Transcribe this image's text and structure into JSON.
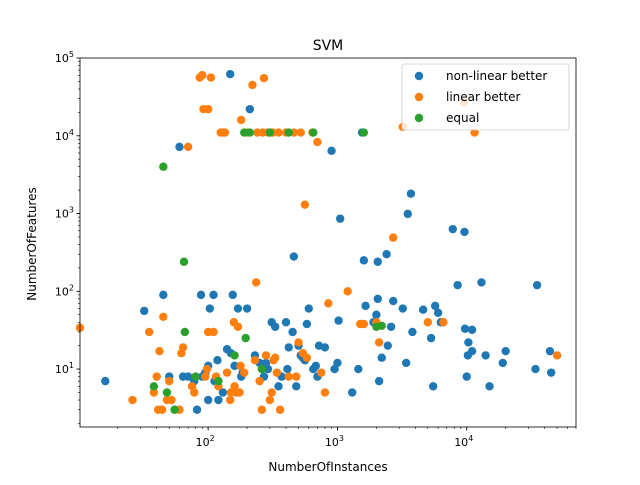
{
  "chart_data": {
    "type": "scatter",
    "title": "SVM",
    "xlabel": "NumberOfInstances",
    "ylabel": "NumberOfFeatures",
    "xscale": "log",
    "yscale": "log",
    "xlim": [
      10.2,
      70000
    ],
    "ylim": [
      1.8,
      100000
    ],
    "xticks": [
      {
        "value": 100,
        "label": "10²",
        "base": "10",
        "exp": "2"
      },
      {
        "value": 1000,
        "label": "10³",
        "base": "10",
        "exp": "3"
      },
      {
        "value": 10000,
        "label": "10⁴",
        "base": "10",
        "exp": "4"
      }
    ],
    "yticks": [
      {
        "value": 10,
        "label": "10¹",
        "base": "10",
        "exp": "1"
      },
      {
        "value": 100,
        "label": "10²",
        "base": "10",
        "exp": "2"
      },
      {
        "value": 1000,
        "label": "10³",
        "base": "10",
        "exp": "3"
      },
      {
        "value": 10000,
        "label": "10⁴",
        "base": "10",
        "exp": "4"
      },
      {
        "value": 100000,
        "label": "10⁵",
        "base": "10",
        "exp": "5"
      }
    ],
    "grid": false,
    "legend_position": "top-right",
    "series": [
      {
        "name": "non-linear better",
        "color": "#1f77b4",
        "points": [
          [
            16,
            7
          ],
          [
            32,
            56
          ],
          [
            45,
            90
          ],
          [
            50,
            8
          ],
          [
            60,
            7200
          ],
          [
            64,
            8
          ],
          [
            70,
            8
          ],
          [
            78,
            7
          ],
          [
            82,
            3
          ],
          [
            88,
            90
          ],
          [
            90,
            8
          ],
          [
            95,
            9
          ],
          [
            100,
            11
          ],
          [
            100,
            4
          ],
          [
            103,
            60
          ],
          [
            110,
            90
          ],
          [
            112,
            7
          ],
          [
            118,
            13
          ],
          [
            120,
            4
          ],
          [
            130,
            5
          ],
          [
            140,
            18
          ],
          [
            148,
            62000
          ],
          [
            150,
            16
          ],
          [
            155,
            90
          ],
          [
            160,
            11
          ],
          [
            170,
            60
          ],
          [
            180,
            8
          ],
          [
            185,
            9
          ],
          [
            200,
            60
          ],
          [
            210,
            22000
          ],
          [
            230,
            15
          ],
          [
            250,
            12
          ],
          [
            270,
            8
          ],
          [
            280,
            12
          ],
          [
            290,
            10
          ],
          [
            310,
            40
          ],
          [
            330,
            35
          ],
          [
            350,
            6
          ],
          [
            370,
            8
          ],
          [
            400,
            40
          ],
          [
            410,
            10
          ],
          [
            420,
            19
          ],
          [
            450,
            30
          ],
          [
            460,
            280
          ],
          [
            480,
            6
          ],
          [
            500,
            20
          ],
          [
            520,
            15
          ],
          [
            540,
            14
          ],
          [
            560,
            13
          ],
          [
            580,
            38
          ],
          [
            600,
            60
          ],
          [
            650,
            10
          ],
          [
            680,
            11
          ],
          [
            700,
            8
          ],
          [
            720,
            20
          ],
          [
            800,
            19
          ],
          [
            900,
            6400
          ],
          [
            950,
            10
          ],
          [
            1000,
            12
          ],
          [
            1020,
            42
          ],
          [
            1050,
            860
          ],
          [
            1300,
            5
          ],
          [
            1450,
            10
          ],
          [
            1550,
            11000
          ],
          [
            1600,
            250
          ],
          [
            1650,
            65
          ],
          [
            1900,
            40
          ],
          [
            2000,
            50
          ],
          [
            2050,
            240
          ],
          [
            2050,
            80
          ],
          [
            2100,
            7
          ],
          [
            2200,
            14
          ],
          [
            2400,
            300
          ],
          [
            2450,
            20
          ],
          [
            2600,
            35
          ],
          [
            2700,
            75
          ],
          [
            3200,
            60
          ],
          [
            3400,
            12
          ],
          [
            3500,
            990
          ],
          [
            3700,
            1800
          ],
          [
            3800,
            30
          ],
          [
            4600,
            58
          ],
          [
            5300,
            25
          ],
          [
            5500,
            6
          ],
          [
            5700,
            65
          ],
          [
            6000,
            53
          ],
          [
            6300,
            40
          ],
          [
            7800,
            630
          ],
          [
            8500,
            120
          ],
          [
            9600,
            580
          ],
          [
            9700,
            33
          ],
          [
            10000,
            8
          ],
          [
            10200,
            15
          ],
          [
            10300,
            22
          ],
          [
            11000,
            17
          ],
          [
            11000,
            32
          ],
          [
            13000,
            130
          ],
          [
            14000,
            15
          ],
          [
            15000,
            6
          ],
          [
            19000,
            12
          ],
          [
            20000,
            17
          ],
          [
            34000,
            10
          ],
          [
            35000,
            120
          ],
          [
            44000,
            17
          ],
          [
            45000,
            9
          ]
        ]
      },
      {
        "name": "linear better",
        "color": "#ff7f0e",
        "points": [
          [
            10.2,
            34
          ],
          [
            26,
            4
          ],
          [
            35,
            30
          ],
          [
            38,
            5
          ],
          [
            40,
            8
          ],
          [
            41,
            3
          ],
          [
            42,
            17
          ],
          [
            44,
            3
          ],
          [
            45,
            47
          ],
          [
            48,
            4
          ],
          [
            50,
            7
          ],
          [
            52,
            4
          ],
          [
            60,
            3
          ],
          [
            62,
            16
          ],
          [
            64,
            19
          ],
          [
            70,
            7200
          ],
          [
            75,
            6
          ],
          [
            78,
            5
          ],
          [
            86,
            56000
          ],
          [
            90,
            60000
          ],
          [
            92,
            22000
          ],
          [
            95,
            8
          ],
          [
            98,
            10
          ],
          [
            100,
            22000
          ],
          [
            100,
            30
          ],
          [
            105,
            56000
          ],
          [
            110,
            30
          ],
          [
            115,
            8
          ],
          [
            120,
            6
          ],
          [
            125,
            11000
          ],
          [
            130,
            11000
          ],
          [
            135,
            11000
          ],
          [
            140,
            9
          ],
          [
            148,
            4
          ],
          [
            150,
            5
          ],
          [
            158,
            40
          ],
          [
            160,
            6
          ],
          [
            165,
            5
          ],
          [
            170,
            35
          ],
          [
            175,
            5
          ],
          [
            178,
            11
          ],
          [
            180,
            16000
          ],
          [
            190,
            9
          ],
          [
            200,
            11000
          ],
          [
            220,
            45000
          ],
          [
            230,
            13
          ],
          [
            235,
            130
          ],
          [
            240,
            11000
          ],
          [
            250,
            7
          ],
          [
            260,
            3
          ],
          [
            265,
            11000
          ],
          [
            270,
            55000
          ],
          [
            280,
            15
          ],
          [
            290,
            11000
          ],
          [
            300,
            4
          ],
          [
            310,
            5
          ],
          [
            315,
            11000
          ],
          [
            320,
            13
          ],
          [
            330,
            14
          ],
          [
            340,
            9
          ],
          [
            350,
            11000
          ],
          [
            360,
            3
          ],
          [
            400,
            11000
          ],
          [
            420,
            8
          ],
          [
            460,
            11000
          ],
          [
            480,
            8
          ],
          [
            500,
            22
          ],
          [
            520,
            11000
          ],
          [
            540,
            16
          ],
          [
            560,
            1300
          ],
          [
            580,
            14
          ],
          [
            640,
            11000
          ],
          [
            700,
            8300
          ],
          [
            750,
            9
          ],
          [
            800,
            5
          ],
          [
            850,
            70
          ],
          [
            1200,
            100
          ],
          [
            1500,
            38
          ],
          [
            1600,
            38
          ],
          [
            2000,
            40
          ],
          [
            2100,
            22
          ],
          [
            2700,
            490
          ],
          [
            3200,
            13000
          ],
          [
            5000,
            40
          ],
          [
            6600,
            40
          ],
          [
            9500,
            27000
          ],
          [
            11500,
            11000
          ],
          [
            50000,
            15
          ]
        ]
      },
      {
        "name": "equal",
        "color": "#2ca02c",
        "points": [
          [
            38,
            6
          ],
          [
            45,
            4000
          ],
          [
            48,
            5
          ],
          [
            55,
            3
          ],
          [
            65,
            240
          ],
          [
            66,
            30
          ],
          [
            80,
            8
          ],
          [
            120,
            7
          ],
          [
            160,
            15
          ],
          [
            190,
            11000
          ],
          [
            195,
            25
          ],
          [
            210,
            11000
          ],
          [
            260,
            10
          ],
          [
            300,
            11000
          ],
          [
            420,
            11000
          ],
          [
            650,
            11000
          ],
          [
            1600,
            11000
          ],
          [
            2000,
            35
          ],
          [
            2200,
            36
          ]
        ]
      }
    ]
  }
}
